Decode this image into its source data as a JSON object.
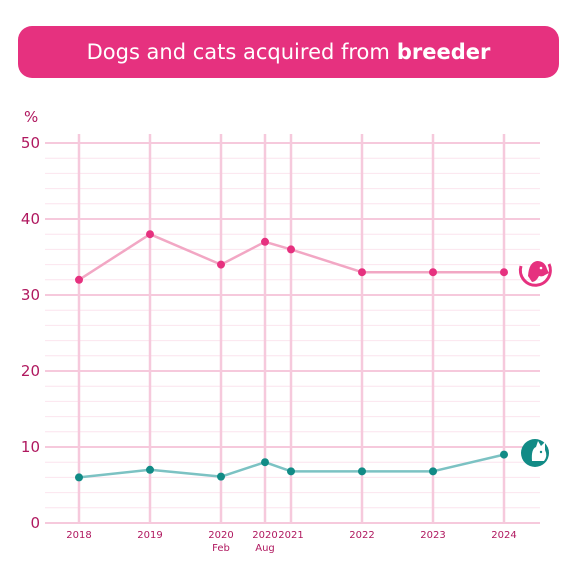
{
  "title": {
    "text": "Dogs and cats acquired from",
    "bold": "breeder"
  },
  "colors": {
    "banner": "#e6317f",
    "axis_text": "#b0185f",
    "grid_major": "#f6c9dc",
    "grid_minor": "#fbe4ee",
    "dog_line": "#f2a7c4",
    "dog_dot": "#e6317f",
    "cat_line": "#7cc2c3",
    "cat_dot": "#128b86"
  },
  "chart_data": {
    "type": "line",
    "ylabel": "%",
    "ylim": [
      0,
      50
    ],
    "yticks": [
      0,
      10,
      20,
      30,
      40,
      50
    ],
    "x_ticks": [
      {
        "label": "2018",
        "sub": ""
      },
      {
        "label": "2019",
        "sub": ""
      },
      {
        "label": "2020",
        "sub": "Feb"
      },
      {
        "label": "2020",
        "sub": "Aug"
      },
      {
        "label": "2021",
        "sub": ""
      },
      {
        "label": "2022",
        "sub": ""
      },
      {
        "label": "2023",
        "sub": ""
      },
      {
        "label": "2024",
        "sub": ""
      }
    ],
    "x_dates": [
      2018.0,
      2019.0,
      2020.0,
      2020.6,
      2020.9,
      2022.0,
      2023.0,
      2024.0
    ],
    "series": [
      {
        "icon": "dog-icon",
        "color_key": "dog",
        "values": [
          32,
          38,
          34,
          37,
          36,
          33,
          33,
          33
        ]
      },
      {
        "icon": "cat-icon",
        "color_key": "cat",
        "values": [
          6,
          7,
          6.1,
          8,
          6.8,
          6.8,
          6.8,
          9
        ]
      }
    ],
    "grid": true
  }
}
